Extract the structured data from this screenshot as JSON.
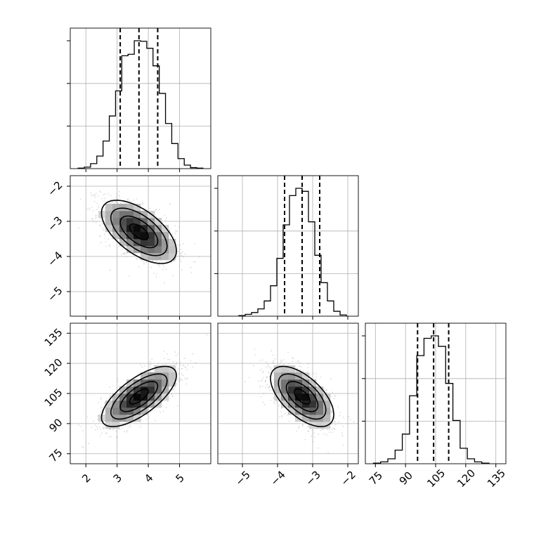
{
  "chart_data": {
    "type": "corner",
    "parameters": [
      {
        "ticks": [
          2,
          3,
          4,
          5
        ],
        "tick_labels": [
          "2",
          "3",
          "4",
          "5"
        ],
        "range": [
          1.5,
          6.0
        ],
        "mean": 3.7,
        "sd": 0.6,
        "quantiles": [
          3.1,
          3.7,
          4.3
        ],
        "hist": {
          "bins_start": 1.75,
          "bin_width": 0.2,
          "counts": [
            1,
            3,
            10,
            25,
            55,
            105,
            155,
            225,
            228,
            255,
            254,
            240,
            205,
            150,
            90,
            50,
            20,
            7,
            2,
            1
          ]
        }
      },
      {
        "ticks": [
          -5,
          -4,
          -3,
          -2
        ],
        "tick_labels": [
          "−5",
          "−4",
          "−3",
          "−2"
        ],
        "range": [
          -5.7,
          -1.7
        ],
        "mean": -3.3,
        "sd": 0.45,
        "quantiles": [
          -3.8,
          -3.3,
          -2.8
        ],
        "hist": {
          "bins_start": -5.1,
          "bin_width": 0.18,
          "counts": [
            1,
            3,
            6,
            12,
            25,
            50,
            95,
            150,
            198,
            210,
            205,
            155,
            100,
            55,
            25,
            8,
            2
          ]
        }
      },
      {
        "ticks": [
          75,
          90,
          105,
          120,
          135
        ],
        "tick_labels": [
          "75",
          "90",
          "105",
          "120",
          "135"
        ],
        "range": [
          70.0,
          140.0
        ],
        "mean": 103.5,
        "sd": 7.5,
        "quantiles": [
          96.0,
          104.0,
          111.5
        ],
        "hist": {
          "bins_start": 74.0,
          "bin_width": 3.6,
          "counts": [
            1,
            3,
            8,
            22,
            48,
            110,
            175,
            203,
            207,
            190,
            130,
            70,
            25,
            8,
            3,
            1
          ]
        }
      }
    ],
    "pairs": [
      {
        "x": 0,
        "y": 1,
        "correlation": -0.6
      },
      {
        "x": 0,
        "y": 2,
        "correlation": 0.7
      },
      {
        "x": 1,
        "y": 2,
        "correlation": -0.6
      }
    ],
    "contour_levels_sigma": [
      0.5,
      1.0,
      1.5,
      2.0
    ],
    "grid": true,
    "colors": {
      "line": "#000000",
      "grid": "#b0b0b0",
      "scatter": "#9a9a9a"
    }
  }
}
